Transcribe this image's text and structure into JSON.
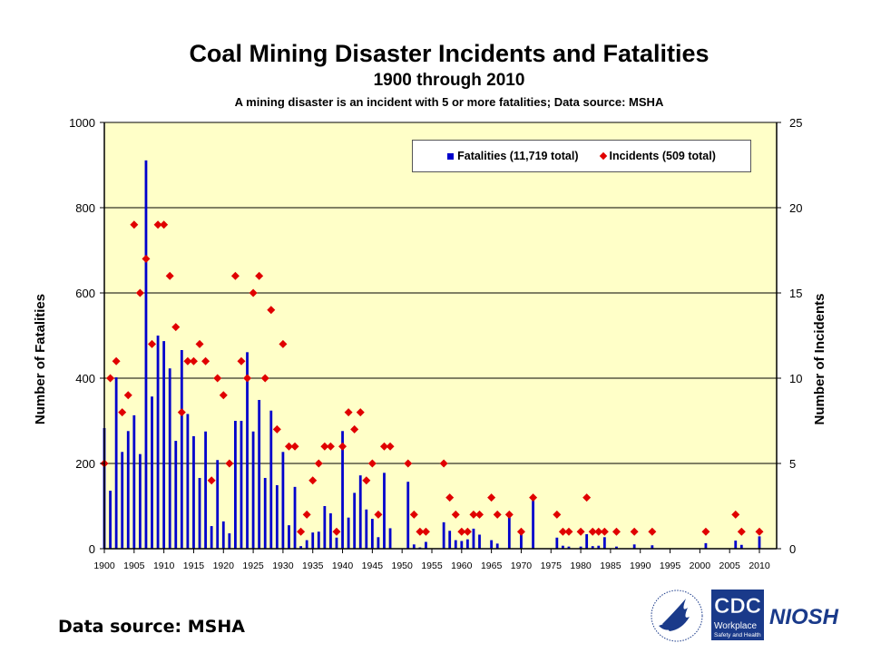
{
  "chart_data": {
    "type": "bar+scatter",
    "title": "Coal Mining Disaster Incidents and Fatalities",
    "subtitle": "1900 through 2010",
    "note": "A mining disaster is an incident with 5 or more fatalities; Data source: MSHA",
    "ylabel_left": "Number of Fatalities",
    "ylabel_right": "Number of Incidents",
    "ylim_left": [
      0,
      1000
    ],
    "ylim_right": [
      0,
      25
    ],
    "yticks_left": [
      "0",
      "200",
      "400",
      "600",
      "800",
      "1000"
    ],
    "yticks_right": [
      "0",
      "5",
      "10",
      "15",
      "20",
      "25"
    ],
    "xticks": [
      "1900",
      "1905",
      "1910",
      "1915",
      "1920",
      "1925",
      "1930",
      "1935",
      "1940",
      "1945",
      "1950",
      "1955",
      "1960",
      "1965",
      "1970",
      "1975",
      "1980",
      "1985",
      "1990",
      "1995",
      "2000",
      "2005",
      "2010"
    ],
    "grid": true,
    "legend_position": "top-right",
    "plot_background": "#ffffc8",
    "x_start": 1900,
    "x_end": 2010,
    "series": [
      {
        "name": "Fatalities (11,719 total)",
        "kind": "bar",
        "axis": "left",
        "color": "#0000cc",
        "values": [
          283,
          136,
          402,
          227,
          276,
          313,
          222,
          911,
          357,
          500,
          487,
          423,
          253,
          466,
          316,
          264,
          166,
          275,
          53,
          208,
          64,
          36,
          300,
          300,
          461,
          275,
          349,
          166,
          324,
          149,
          227,
          55,
          145,
          6,
          20,
          38,
          40,
          100,
          83,
          26,
          276,
          73,
          131,
          172,
          92,
          70,
          27,
          178,
          48,
          0,
          0,
          157,
          10,
          3,
          16,
          0,
          0,
          62,
          42,
          20,
          18,
          22,
          47,
          33,
          0,
          20,
          12,
          0,
          78,
          0,
          38,
          0,
          116,
          0,
          0,
          0,
          26,
          7,
          5,
          0,
          5,
          34,
          6,
          7,
          27,
          0,
          5,
          0,
          0,
          10,
          0,
          0,
          8,
          0,
          0,
          0,
          0,
          0,
          0,
          0,
          0,
          13,
          0,
          0,
          0,
          0,
          19,
          9,
          0,
          0,
          29
        ]
      },
      {
        "name": "Incidents (509 total)",
        "kind": "scatter",
        "axis": "right",
        "color": "#e00000",
        "values": [
          5,
          10,
          11,
          8,
          9,
          19,
          15,
          17,
          12,
          19,
          19,
          16,
          13,
          8,
          11,
          11,
          12,
          11,
          4,
          10,
          9,
          5,
          16,
          11,
          10,
          15,
          16,
          10,
          14,
          7,
          12,
          6,
          6,
          1,
          2,
          4,
          5,
          6,
          6,
          1,
          6,
          8,
          7,
          8,
          4,
          5,
          2,
          6,
          6,
          0,
          0,
          5,
          2,
          1,
          1,
          0,
          0,
          5,
          3,
          2,
          1,
          1,
          2,
          2,
          0,
          3,
          2,
          0,
          2,
          0,
          1,
          0,
          3,
          0,
          0,
          0,
          2,
          1,
          1,
          0,
          1,
          3,
          1,
          1,
          1,
          0,
          1,
          0,
          0,
          1,
          0,
          0,
          1,
          0,
          0,
          0,
          0,
          0,
          0,
          0,
          0,
          1,
          0,
          0,
          0,
          0,
          2,
          1,
          0,
          0,
          1
        ]
      }
    ]
  },
  "footer": {
    "data_source": "Data source: MSHA",
    "logos": [
      "HHS",
      "CDC Workplace Safety and Health",
      "NIOSH"
    ],
    "cdc_text": "CDC",
    "cdc_sub1": "Workplace",
    "cdc_sub2": "Safety and Health",
    "niosh_text": "NIOSH"
  }
}
